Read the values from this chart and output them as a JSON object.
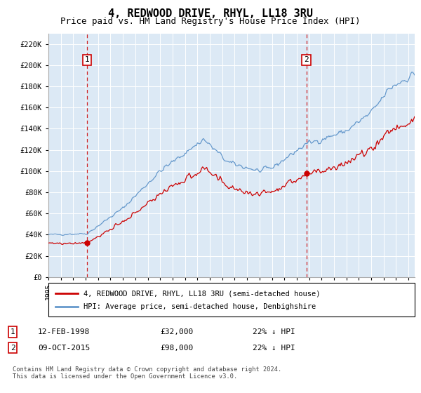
{
  "title": "4, REDWOOD DRIVE, RHYL, LL18 3RU",
  "subtitle": "Price paid vs. HM Land Registry's House Price Index (HPI)",
  "ylim": [
    0,
    230000
  ],
  "yticks": [
    0,
    20000,
    40000,
    60000,
    80000,
    100000,
    120000,
    140000,
    160000,
    180000,
    200000,
    220000
  ],
  "ytick_labels": [
    "£0",
    "£20K",
    "£40K",
    "£60K",
    "£80K",
    "£100K",
    "£120K",
    "£140K",
    "£160K",
    "£180K",
    "£200K",
    "£220K"
  ],
  "background_color": "#dce9f5",
  "legend_line1": "4, REDWOOD DRIVE, RHYL, LL18 3RU (semi-detached house)",
  "legend_line2": "HPI: Average price, semi-detached house, Denbighshire",
  "sale1_date": "12-FEB-1998",
  "sale1_price": 32000,
  "sale1_label": "22% ↓ HPI",
  "sale2_date": "09-OCT-2015",
  "sale2_price": 98000,
  "sale2_label": "22% ↓ HPI",
  "footnote": "Contains HM Land Registry data © Crown copyright and database right 2024.\nThis data is licensed under the Open Government Licence v3.0.",
  "hpi_color": "#6699cc",
  "price_color": "#cc0000",
  "sale1_x": 1998.12,
  "sale2_x": 2015.77
}
